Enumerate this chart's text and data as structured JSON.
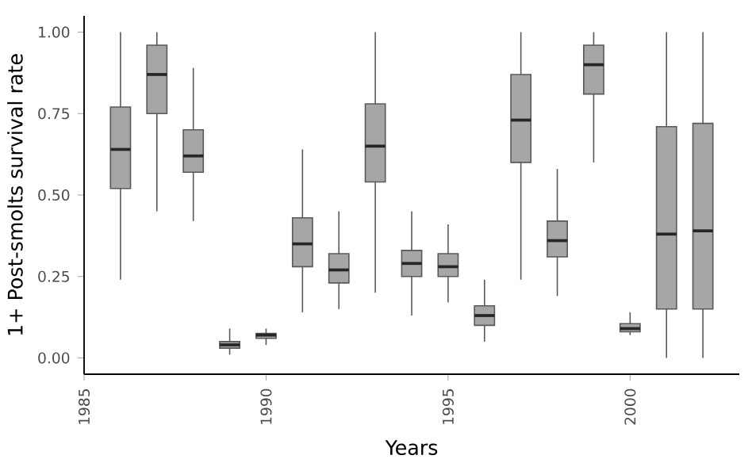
{
  "chart_data": {
    "type": "box",
    "xlabel": "Years",
    "ylabel": "1+ Post-smolts survival rate",
    "color": "#a6a6a6",
    "xlim": [
      1985,
      2003
    ],
    "xticks": [
      1985,
      1990,
      1995,
      2000
    ],
    "ylim": [
      -0.05,
      1.05
    ],
    "yticks": [
      {
        "value": 0,
        "label": "0.00"
      },
      {
        "value": 0.25,
        "label": "0.25"
      },
      {
        "value": 0.5,
        "label": "0.50"
      },
      {
        "value": 0.75,
        "label": "0.75"
      },
      {
        "value": 1,
        "label": "1.00"
      }
    ],
    "x": [
      1986,
      1987,
      1988,
      1989,
      1990,
      1991,
      1992,
      1993,
      1994,
      1995,
      1996,
      1997,
      1998,
      1999,
      2000,
      2001,
      2002
    ],
    "boxes": [
      {
        "low": 0.24,
        "q1": 0.52,
        "median": 0.64,
        "q3": 0.77,
        "high": 1.0
      },
      {
        "low": 0.45,
        "q1": 0.75,
        "median": 0.87,
        "q3": 0.96,
        "high": 1.0
      },
      {
        "low": 0.42,
        "q1": 0.57,
        "median": 0.62,
        "q3": 0.7,
        "high": 0.89
      },
      {
        "low": 0.01,
        "q1": 0.03,
        "median": 0.04,
        "q3": 0.05,
        "high": 0.09
      },
      {
        "low": 0.04,
        "q1": 0.06,
        "median": 0.07,
        "q3": 0.075,
        "high": 0.09
      },
      {
        "low": 0.14,
        "q1": 0.28,
        "median": 0.35,
        "q3": 0.43,
        "high": 0.64
      },
      {
        "low": 0.15,
        "q1": 0.23,
        "median": 0.27,
        "q3": 0.32,
        "high": 0.45
      },
      {
        "low": 0.2,
        "q1": 0.54,
        "median": 0.65,
        "q3": 0.78,
        "high": 1.0
      },
      {
        "low": 0.13,
        "q1": 0.25,
        "median": 0.29,
        "q3": 0.33,
        "high": 0.45
      },
      {
        "low": 0.17,
        "q1": 0.25,
        "median": 0.28,
        "q3": 0.32,
        "high": 0.41
      },
      {
        "low": 0.05,
        "q1": 0.1,
        "median": 0.13,
        "q3": 0.16,
        "high": 0.24
      },
      {
        "low": 0.24,
        "q1": 0.6,
        "median": 0.73,
        "q3": 0.87,
        "high": 1.0
      },
      {
        "low": 0.19,
        "q1": 0.31,
        "median": 0.36,
        "q3": 0.42,
        "high": 0.58
      },
      {
        "low": 0.6,
        "q1": 0.81,
        "median": 0.9,
        "q3": 0.96,
        "high": 1.0
      },
      {
        "low": 0.07,
        "q1": 0.08,
        "median": 0.09,
        "q3": 0.105,
        "high": 0.14
      },
      {
        "low": 0.0,
        "q1": 0.15,
        "median": 0.38,
        "q3": 0.71,
        "high": 1.0
      },
      {
        "low": 0.0,
        "q1": 0.15,
        "median": 0.39,
        "q3": 0.72,
        "high": 1.0
      }
    ]
  }
}
